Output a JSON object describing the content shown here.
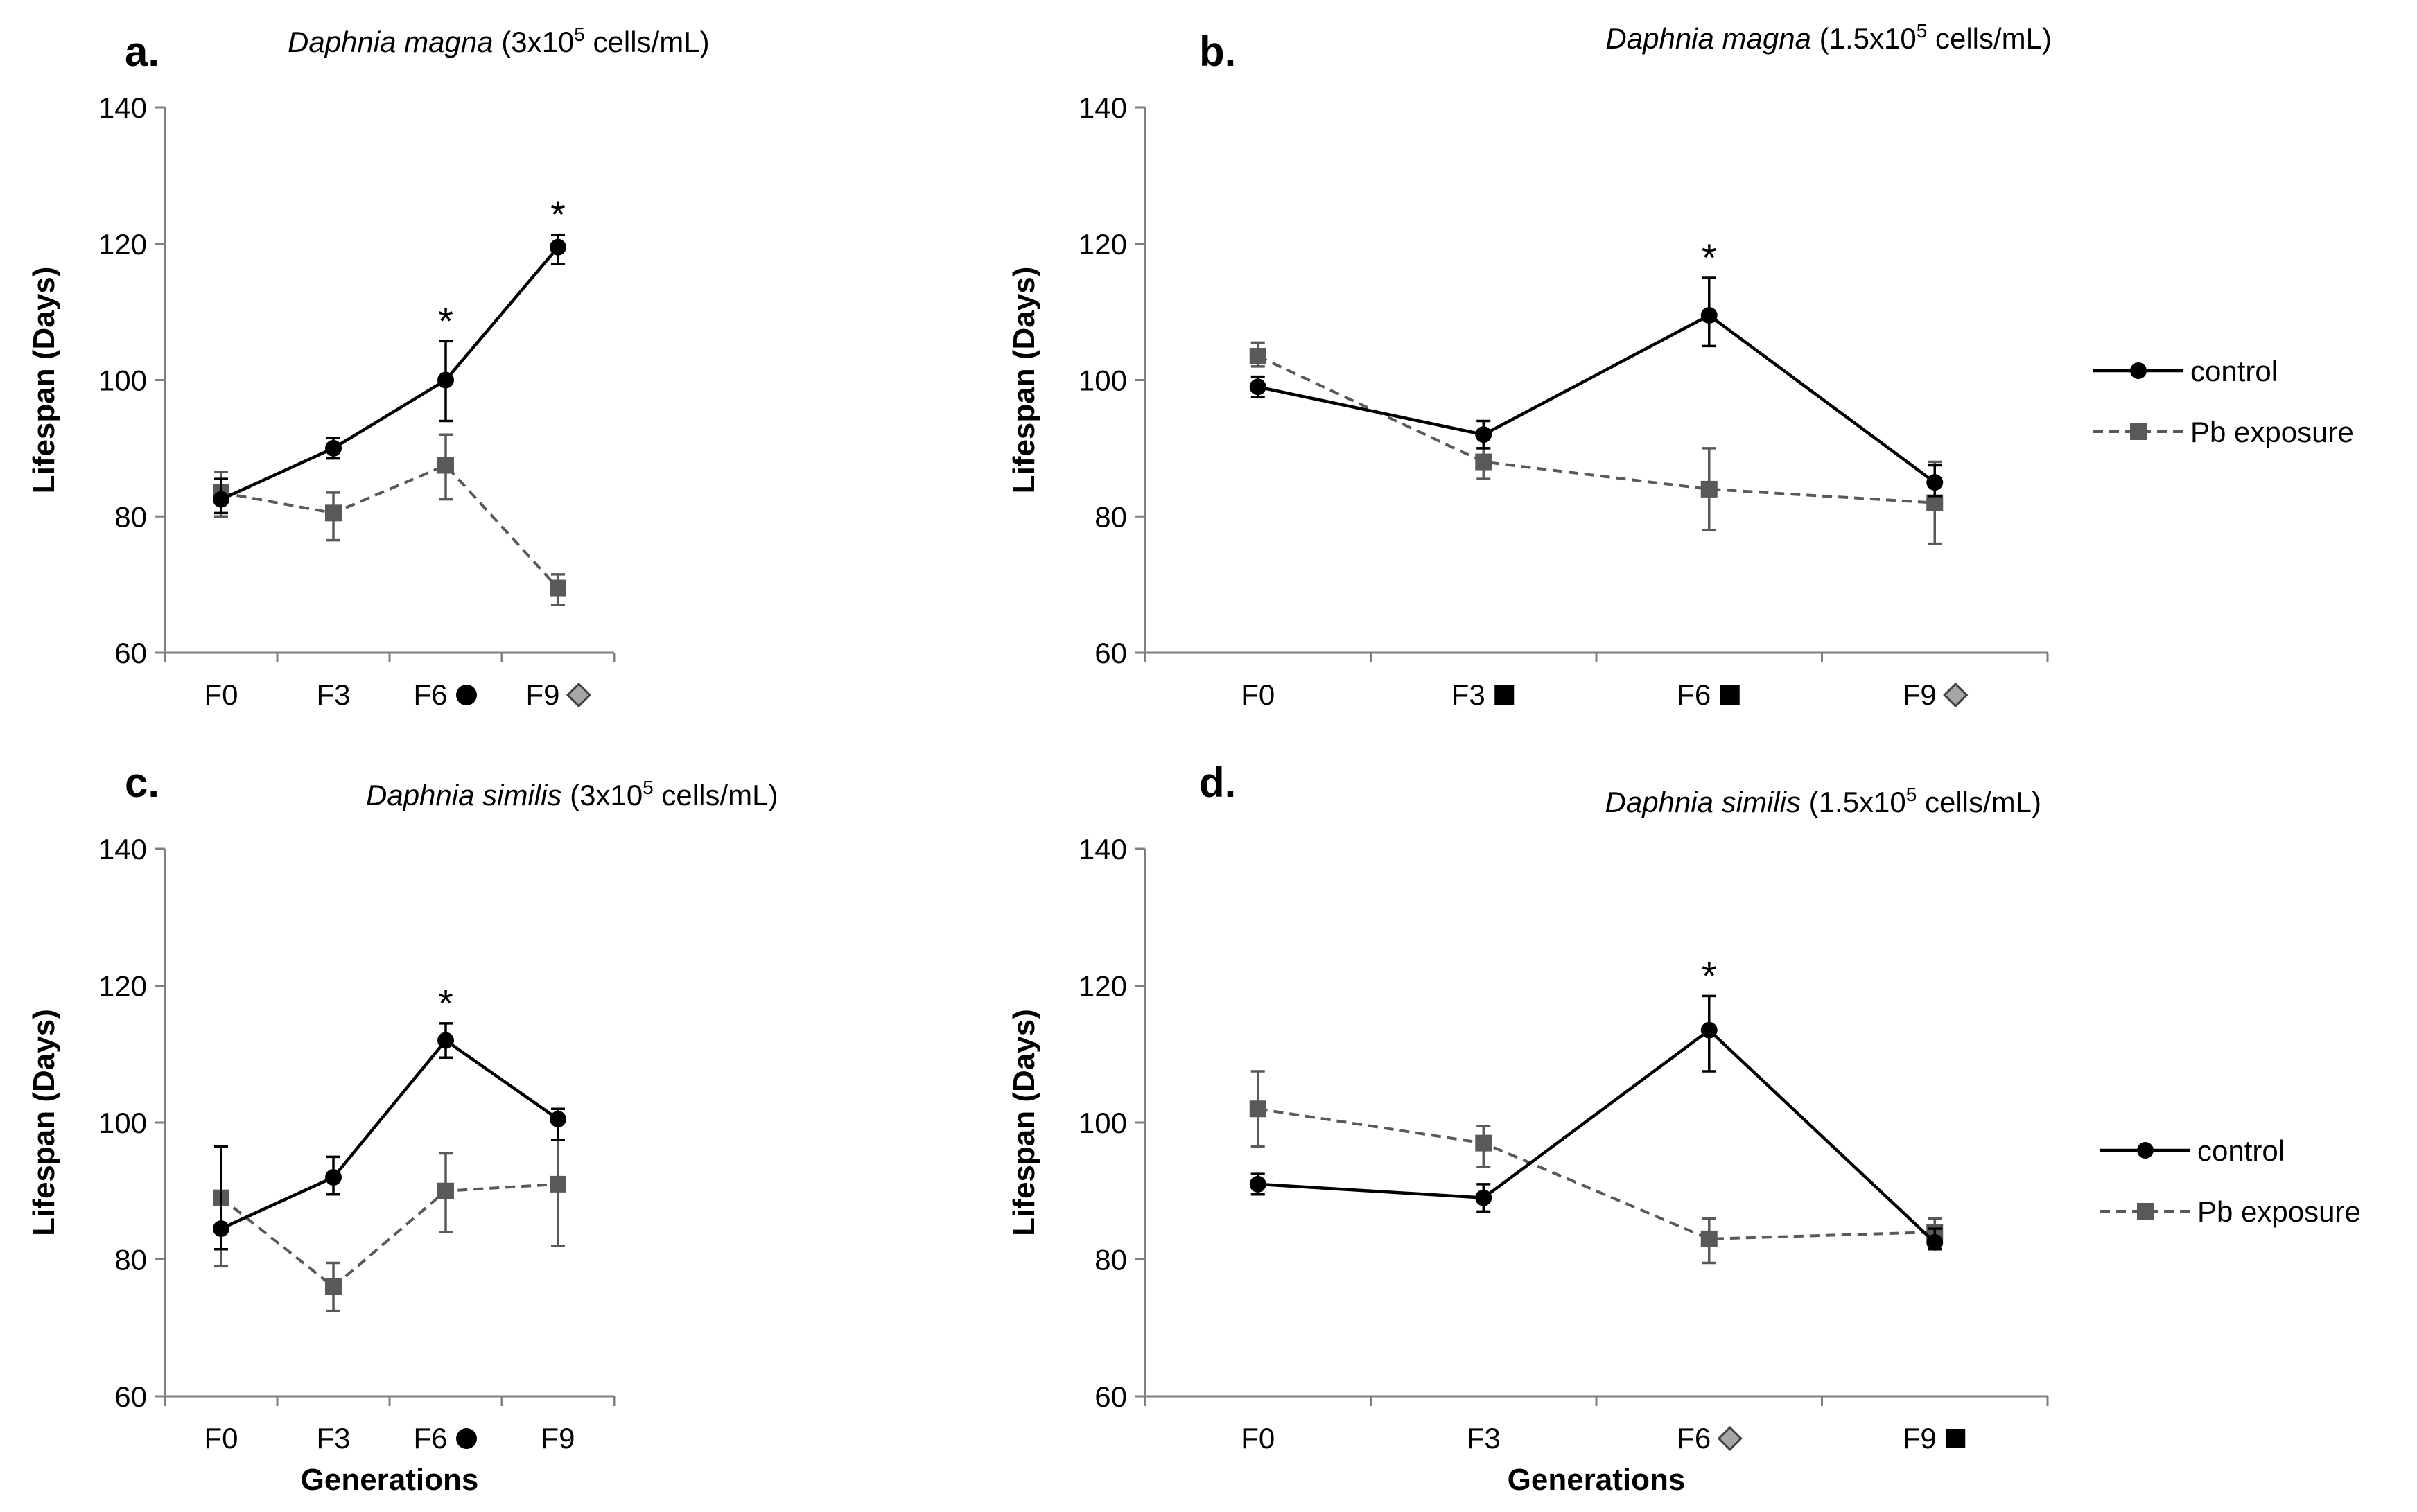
{
  "figure": {
    "y_axis_label": "Lifespan (Days)",
    "x_axis_label": "Generations",
    "legend": {
      "control": "control",
      "pb": "Pb exposure"
    },
    "colors": {
      "control": "#000000",
      "pb": "#595959",
      "axis": "#7f7f7f",
      "diamond_fill": "#a6a6a6"
    },
    "y_ticks": [
      60,
      80,
      100,
      120,
      140
    ]
  },
  "chart_data": [
    {
      "type": "line",
      "panel": "a.",
      "title_italic": "Daphnia magna",
      "title_rest_pre": "(3x10",
      "title_sup": "5",
      "title_rest_post": " cells/mL)",
      "categories": [
        "F0",
        "F3",
        "F6",
        "F9"
      ],
      "category_markers": [
        "",
        "",
        "circle",
        "diamond"
      ],
      "ylim": [
        60,
        140
      ],
      "series": [
        {
          "name": "control",
          "values": [
            82.5,
            90,
            100,
            119.5
          ],
          "err_up": [
            3,
            1.5,
            5.7,
            1.8
          ],
          "err_down": [
            2,
            1.5,
            6,
            2.5
          ]
        },
        {
          "name": "Pb exposure",
          "values": [
            83.5,
            80.5,
            87.5,
            69.5
          ],
          "err_up": [
            3,
            3,
            4.5,
            2
          ],
          "err_down": [
            3.5,
            4,
            5,
            2.5
          ]
        }
      ],
      "significance": [
        "",
        "",
        "*",
        "*"
      ]
    },
    {
      "type": "line",
      "panel": "b.",
      "title_italic": "Daphnia magna",
      "title_rest_pre": "(1.5x10",
      "title_sup": "5",
      "title_rest_post": " cells/mL)",
      "categories": [
        "F0",
        "F3",
        "F6",
        "F9"
      ],
      "category_markers": [
        "",
        "square",
        "square",
        "diamond"
      ],
      "ylim": [
        60,
        140
      ],
      "series": [
        {
          "name": "control",
          "values": [
            99,
            92,
            109.5,
            85
          ],
          "err_up": [
            1.5,
            2,
            5.5,
            2.5
          ],
          "err_down": [
            1.5,
            2,
            4.5,
            2
          ]
        },
        {
          "name": "Pb exposure",
          "values": [
            103.5,
            88,
            84,
            82
          ],
          "err_up": [
            2,
            2,
            6,
            6
          ],
          "err_down": [
            1.5,
            2.5,
            6,
            6
          ]
        }
      ],
      "significance": [
        "",
        "",
        "*",
        ""
      ],
      "legend_position": "right"
    },
    {
      "type": "line",
      "panel": "c.",
      "title_italic": "Daphnia similis",
      "title_rest_pre": "(3x10",
      "title_sup": "5",
      "title_rest_post": " cells/mL)",
      "categories": [
        "F0",
        "F3",
        "F6",
        "F9"
      ],
      "category_markers": [
        "",
        "",
        "circle",
        ""
      ],
      "ylim": [
        60,
        140
      ],
      "series": [
        {
          "name": "control",
          "values": [
            84.5,
            92,
            112,
            100.5
          ],
          "err_up": [
            12,
            3,
            2.5,
            1.5
          ],
          "err_down": [
            3,
            2.5,
            2.5,
            3
          ]
        },
        {
          "name": "Pb exposure",
          "values": [
            89,
            76,
            90,
            91
          ],
          "err_up": [
            7.5,
            3.5,
            5.5,
            6.5
          ],
          "err_down": [
            10,
            3.5,
            6,
            9
          ]
        }
      ],
      "significance": [
        "",
        "",
        "*",
        ""
      ]
    },
    {
      "type": "line",
      "panel": "d.",
      "title_italic": "Daphnia similis",
      "title_rest_pre": "(1.5x10",
      "title_sup": "5",
      "title_rest_post": " cells/mL)",
      "categories": [
        "F0",
        "F3",
        "F6",
        "F9"
      ],
      "category_markers": [
        "",
        "",
        "diamond",
        "square"
      ],
      "ylim": [
        60,
        140
      ],
      "series": [
        {
          "name": "control",
          "values": [
            91,
            89,
            113.5,
            82.5
          ],
          "err_up": [
            1.5,
            2,
            5,
            2
          ],
          "err_down": [
            1.5,
            2,
            6,
            1
          ]
        },
        {
          "name": "Pb exposure",
          "values": [
            102,
            97,
            83,
            84
          ],
          "err_up": [
            5.5,
            2.5,
            3,
            2
          ],
          "err_down": [
            5.5,
            3.5,
            3.5,
            2
          ]
        }
      ],
      "significance": [
        "",
        "",
        "*",
        ""
      ],
      "legend_position": "right"
    }
  ]
}
